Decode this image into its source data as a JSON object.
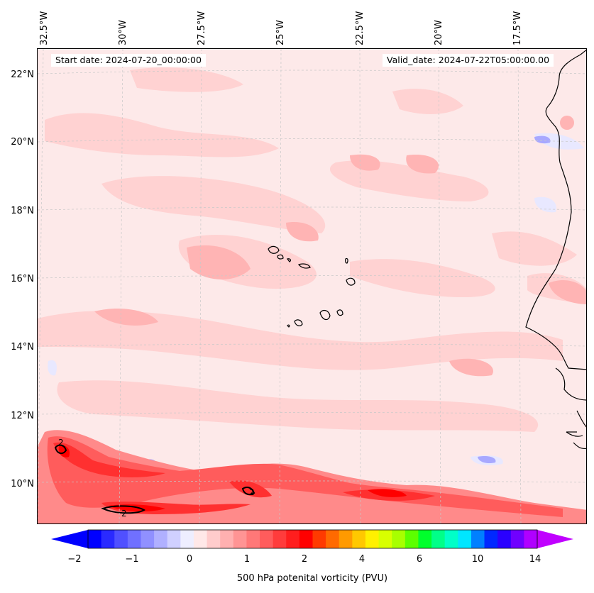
{
  "info": {
    "start_date": "Start date: 2024-07-20_00:00:00",
    "valid_date": "Valid_date: 2024-07-22T05:00:00.00"
  },
  "lon_labels": [
    "32.5°W",
    "30°W",
    "27.5°W",
    "25°W",
    "22.5°W",
    "20°W",
    "17.5°W"
  ],
  "lat_labels": [
    "22°N",
    "20°N",
    "18°N",
    "16°N",
    "14°N",
    "12°N",
    "10°N"
  ],
  "contour_labels": [
    "2",
    "2",
    "2"
  ],
  "colorbar": {
    "label": "500 hPa potenital vorticity (PVU)",
    "ticks": [
      "−2",
      "−1",
      "0",
      "1",
      "2",
      "4",
      "6",
      "10",
      "14"
    ],
    "colors": [
      "#0000ff",
      "#2a2aff",
      "#5050ff",
      "#7070ff",
      "#9090ff",
      "#b0b0ff",
      "#d0d0ff",
      "#eeeeff",
      "#ffe8e8",
      "#ffcccc",
      "#ffb0b0",
      "#ff9494",
      "#ff7878",
      "#ff5c5c",
      "#ff3c3c",
      "#ff1e1e",
      "#ff0000",
      "#ff3a00",
      "#ff6a00",
      "#ff9a00",
      "#ffc800",
      "#fff000",
      "#d8ff00",
      "#a8ff00",
      "#5cff00",
      "#00ff2c",
      "#00ff88",
      "#00ffc8",
      "#00e6ff",
      "#0080ff",
      "#0028ff",
      "#2a00ff",
      "#7000ff",
      "#b000ff"
    ],
    "min_color": "#0000ff",
    "max_color": "#c000ff"
  },
  "field_colors": {
    "background": "#fde9e9",
    "light_pink": "#ffd2d2",
    "pink": "#ffb4b4",
    "salmon": "#ff8a8a",
    "red": "#ff3030",
    "deep_red": "#ff0000",
    "light_blue": "#e8e8ff",
    "blue": "#a8a8ff",
    "mid_blue": "#8080ff"
  }
}
